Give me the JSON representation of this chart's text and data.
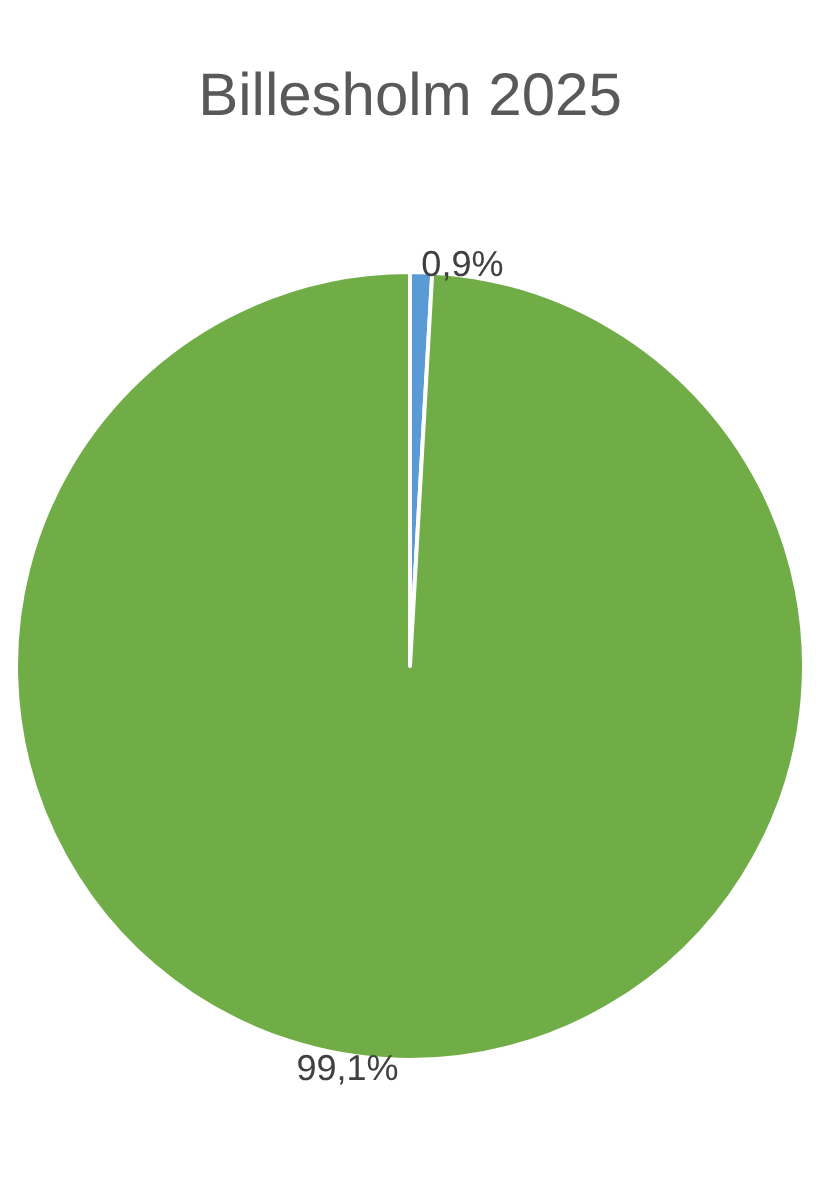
{
  "chart_data": {
    "type": "pie",
    "title": "Billesholm 2025",
    "categories": [
      null,
      null
    ],
    "values": [
      0.9,
      99.1
    ],
    "colors": [
      "#5b9bd5",
      "#70ad47"
    ],
    "value_labels": [
      "0,9%",
      "99,1%"
    ]
  }
}
